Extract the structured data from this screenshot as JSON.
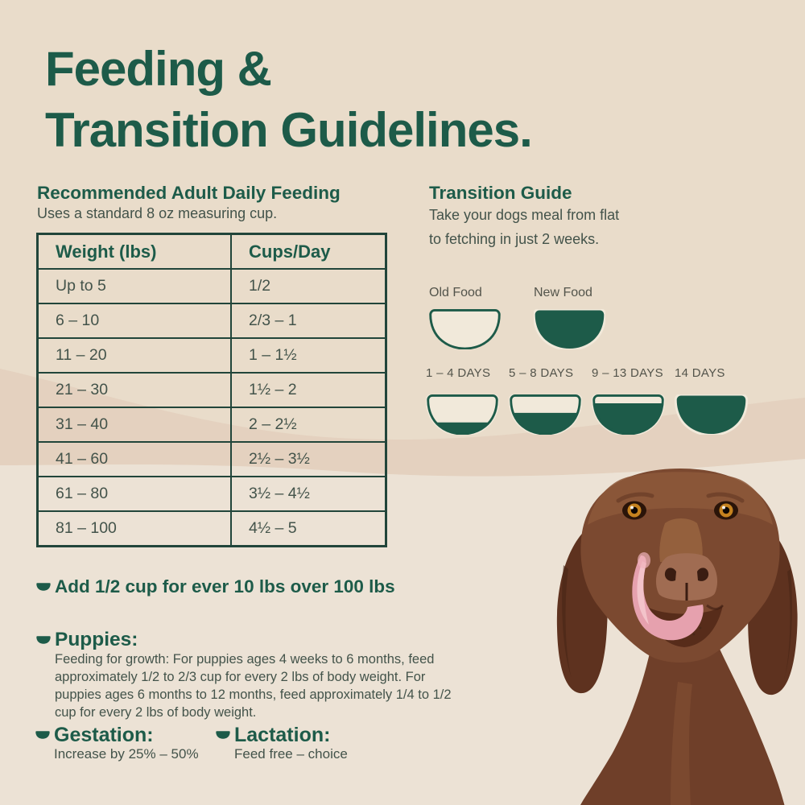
{
  "title": {
    "line1": "Feeding &",
    "line2": "Transition Guidelines."
  },
  "feeding": {
    "heading": "Recommended Adult Daily Feeding",
    "subheading": "Uses a standard 8 oz measuring cup.",
    "table": {
      "headers": [
        "Weight (lbs)",
        "Cups/Day"
      ],
      "rows": [
        [
          "Up to 5",
          "1/2"
        ],
        [
          "6 – 10",
          "2/3 – 1"
        ],
        [
          "11 – 20",
          "1 – 1½"
        ],
        [
          "21 – 30",
          "1½ – 2"
        ],
        [
          "31 – 40",
          "2 – 2½"
        ],
        [
          "41 – 60",
          "2½ – 3½"
        ],
        [
          "61 – 80",
          "3½ – 4½"
        ],
        [
          "81 – 100",
          "4½ – 5"
        ]
      ]
    }
  },
  "transition": {
    "heading": "Transition Guide",
    "body": "Take your dogs meal from flat\nto fetching in just 2 weeks.",
    "legend": [
      {
        "label": "Old Food",
        "fill": 0
      },
      {
        "label": "New Food",
        "fill": 1
      }
    ],
    "stages": [
      {
        "label": "1 – 4 DAYS",
        "fill": 0.3
      },
      {
        "label": "5 – 8 DAYS",
        "fill": 0.55
      },
      {
        "label": "9 – 13 DAYS",
        "fill": 0.8
      },
      {
        "label": "14 DAYS",
        "fill": 1
      }
    ]
  },
  "notes": {
    "add_cup": "Add 1/2 cup for ever 10 lbs over 100 lbs",
    "puppies_heading": "Puppies:",
    "puppies_body": "Feeding for growth: For puppies ages 4 weeks to 6 months, feed\napproximately 1/2 to 2/3 cup for every 2 lbs of body weight. For\npuppies ages 6 months to 12 months, feed approximately 1/4 to 1/2\ncup for every 2 lbs of body weight.",
    "gestation_heading": "Gestation:",
    "gestation_body": "Increase by 25% – 50%",
    "lactation_heading": "Lactation:",
    "lactation_body": "Feed free – choice"
  },
  "dog_photo": {
    "alt": "Brown dog licking its nose"
  },
  "colors": {
    "green": "#1d5b49",
    "border_green": "#21453a",
    "bg_top": "#e9dcca",
    "band": "#e4d1bf",
    "bg_bottom": "#ece2d5",
    "cream": "#f1e9da",
    "text": "#43534a",
    "label": "#53544b"
  }
}
